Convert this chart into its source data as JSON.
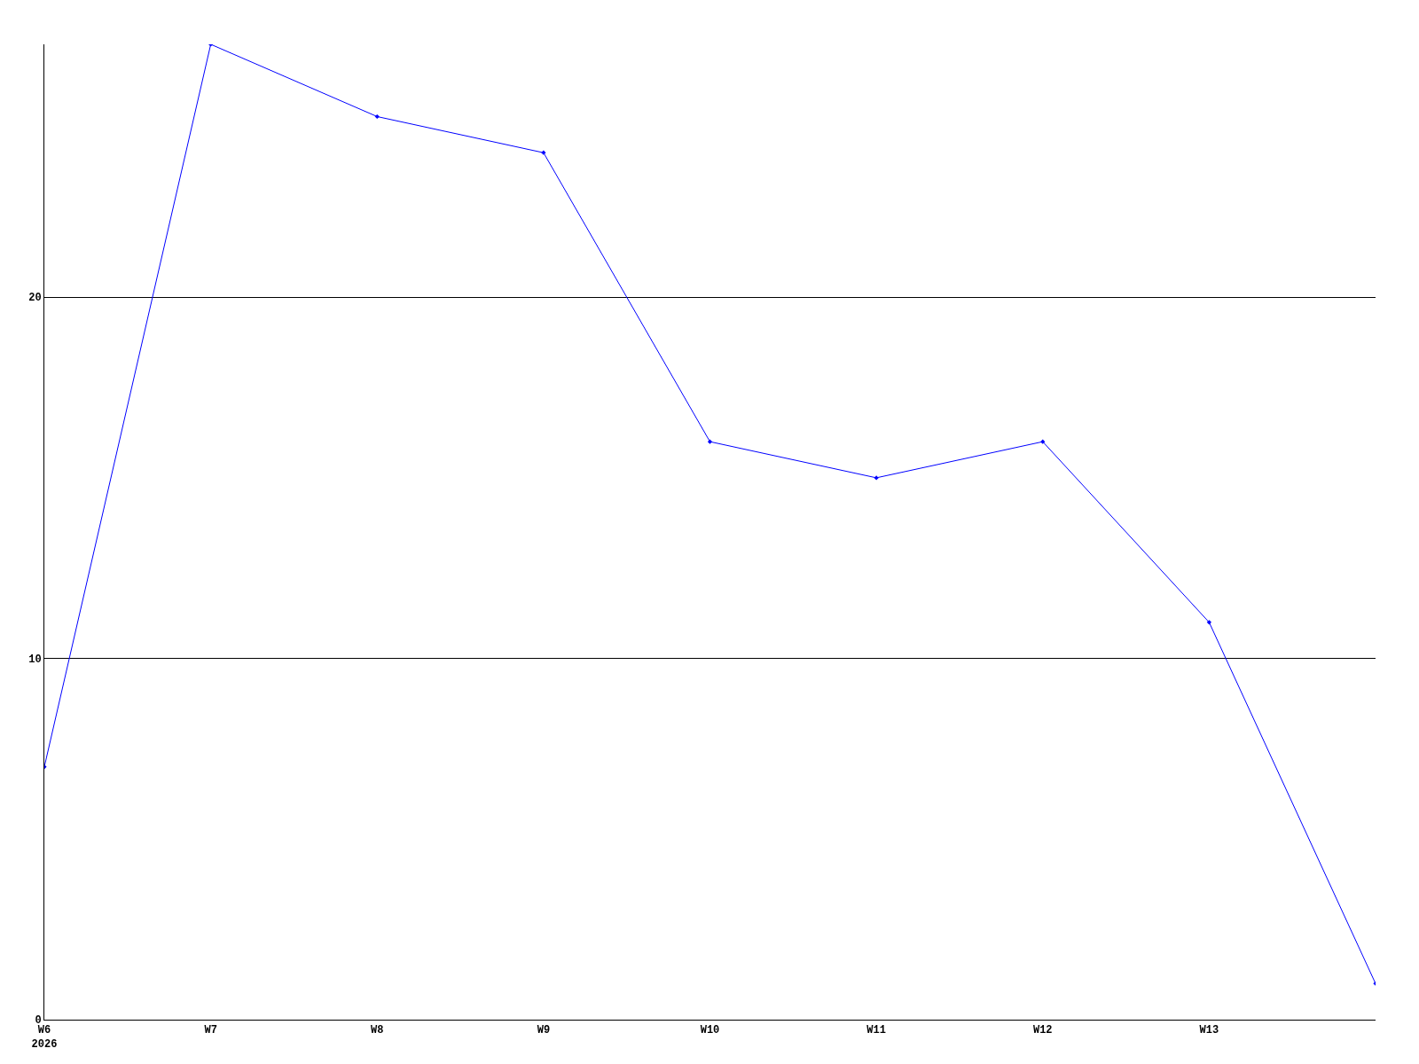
{
  "chart_data": {
    "type": "line",
    "categories": [
      "W6\n2026",
      "W7",
      "W8",
      "W9",
      "W10",
      "W11",
      "W12",
      "W13",
      null
    ],
    "series": [
      {
        "color": "#0000ff",
        "values": [
          7,
          27,
          25,
          24,
          16,
          15,
          16,
          11,
          1
        ]
      }
    ],
    "ylim": [
      0,
      27
    ],
    "yticks": [
      0,
      10,
      20
    ],
    "grid": "y",
    "marker": "diamond",
    "line_style": "solid"
  }
}
